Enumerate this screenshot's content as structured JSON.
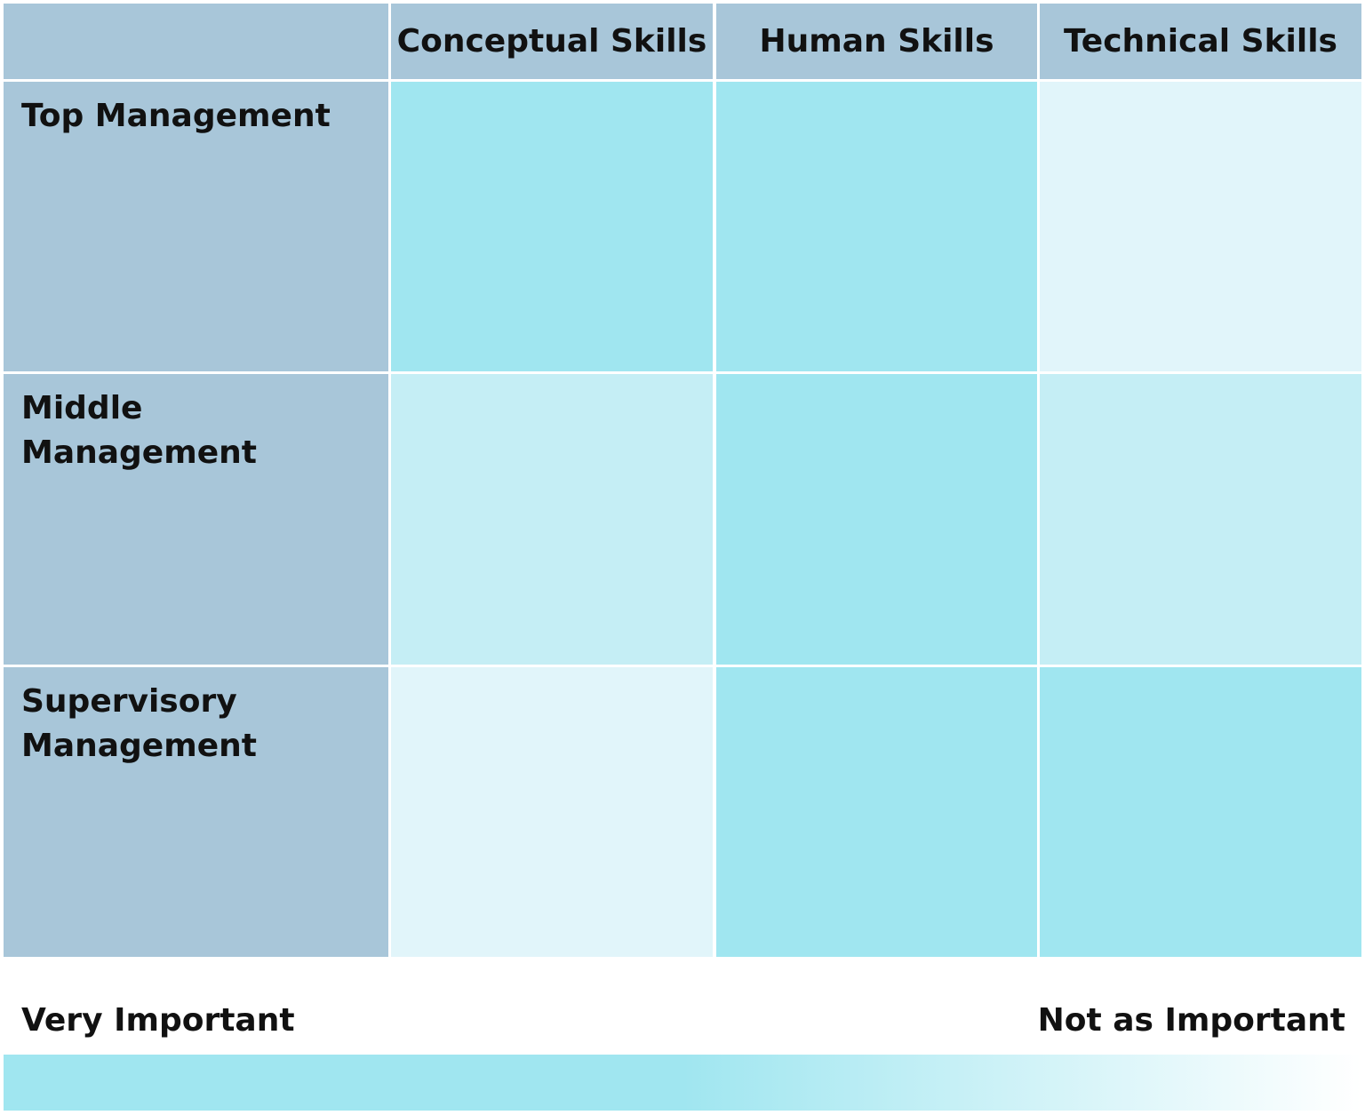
{
  "table": {
    "header_color": "#a8c6d9",
    "columns": [
      "Conceptual Skills",
      "Human Skills",
      "Technical Skills"
    ],
    "rows": [
      {
        "label": "Top Management",
        "colors": [
          "#a0e6f0",
          "#a0e6f0",
          "#e1f5fa"
        ]
      },
      {
        "label": "Middle Management",
        "colors": [
          "#c5eef5",
          "#a0e6f0",
          "#c5eef5"
        ]
      },
      {
        "label": "Supervisory Management",
        "colors": [
          "#e1f5fa",
          "#a0e6f0",
          "#a0e6f0"
        ]
      }
    ]
  },
  "legend": {
    "start_label": "Very Important",
    "end_label": "Not as Important",
    "start_color": "#a0e6f0",
    "end_color": "#ffffff"
  }
}
